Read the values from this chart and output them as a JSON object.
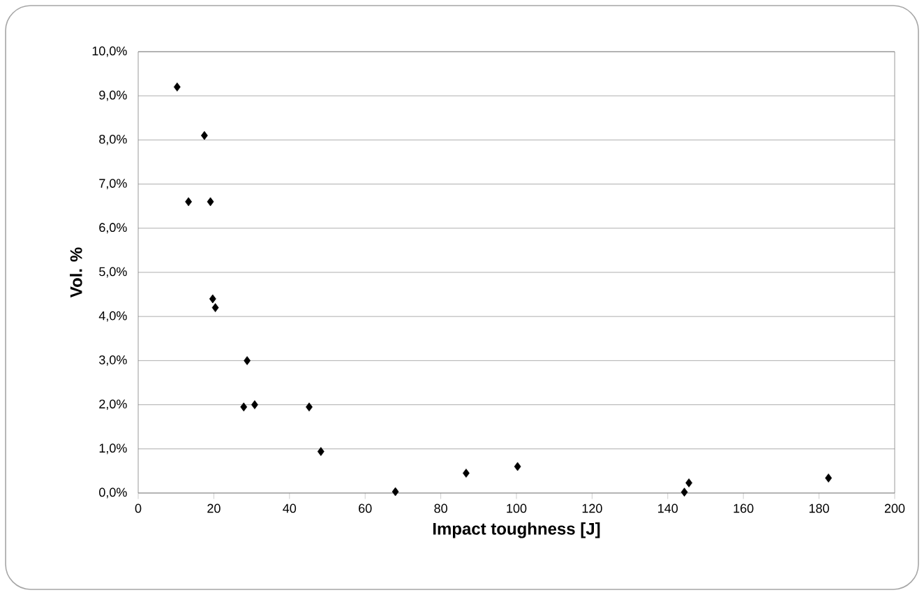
{
  "chart_data": {
    "type": "scatter",
    "xlabel": "Impact toughness [J]",
    "ylabel": "Vol. %",
    "x": [
      10.3,
      17.5,
      13.3,
      19.1,
      19.7,
      20.4,
      28.8,
      27.9,
      30.8,
      45.2,
      48.3,
      68.0,
      86.7,
      100.3,
      144.4,
      145.6,
      182.5
    ],
    "values": [
      9.2,
      8.1,
      6.6,
      6.6,
      4.4,
      4.2,
      3.0,
      1.95,
      2.0,
      1.95,
      0.94,
      0.03,
      0.45,
      0.6,
      0.02,
      0.23,
      0.34
    ],
    "color": "#000000",
    "marker": "diamond",
    "grid": "y",
    "xlim": [
      0,
      200
    ],
    "xticks": [
      0,
      20,
      40,
      60,
      80,
      100,
      120,
      140,
      160,
      180,
      200
    ],
    "ylim": [
      0,
      10
    ],
    "yticks": [
      {
        "value": 0,
        "label": "0,0%"
      },
      {
        "value": 1,
        "label": "1,0%"
      },
      {
        "value": 2,
        "label": "2,0%"
      },
      {
        "value": 3,
        "label": "3,0%"
      },
      {
        "value": 4,
        "label": "4,0%"
      },
      {
        "value": 5,
        "label": "5,0%"
      },
      {
        "value": 6,
        "label": "6,0%"
      },
      {
        "value": 7,
        "label": "7,0%"
      },
      {
        "value": 8,
        "label": "8,0%"
      },
      {
        "value": 9,
        "label": "9,0%"
      },
      {
        "value": 10,
        "label": "10,0%"
      }
    ]
  }
}
